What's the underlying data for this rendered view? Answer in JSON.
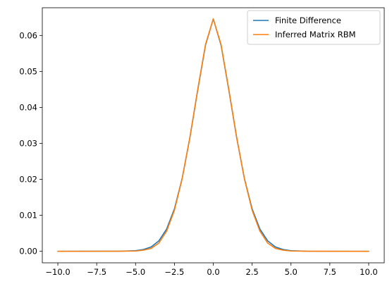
{
  "chart_data": {
    "type": "line",
    "title": "",
    "xlabel": "",
    "ylabel": "",
    "xlim": [
      -11.0,
      11.0
    ],
    "ylim": [
      -0.0032,
      0.0677
    ],
    "x_ticks": [
      -10.0,
      -7.5,
      -5.0,
      -2.5,
      0.0,
      2.5,
      5.0,
      7.5,
      10.0
    ],
    "x_tick_labels": [
      "−10.0",
      "−7.5",
      "−5.0",
      "−2.5",
      "0.0",
      "2.5",
      "5.0",
      "7.5",
      "10.0"
    ],
    "y_ticks": [
      0.0,
      0.01,
      0.02,
      0.03,
      0.04,
      0.05,
      0.06
    ],
    "y_tick_labels": [
      "0.00",
      "0.01",
      "0.02",
      "0.03",
      "0.04",
      "0.05",
      "0.06"
    ],
    "grid": false,
    "legend_position": "top-right",
    "series": [
      {
        "name": "Finite Difference",
        "color": "#1f77b4",
        "x": [
          -10,
          -6,
          -5,
          -4.5,
          -4,
          -3.5,
          -3,
          -2.5,
          -2,
          -1.5,
          -1,
          -0.5,
          0,
          0.5,
          1,
          1.5,
          2,
          2.5,
          3,
          3.5,
          4,
          4.5,
          5,
          6,
          10
        ],
        "y": [
          0.0,
          3e-05,
          0.00018,
          0.0005,
          0.0012,
          0.0029,
          0.0062,
          0.0118,
          0.0203,
          0.0317,
          0.0448,
          0.0573,
          0.0646,
          0.0573,
          0.0448,
          0.0317,
          0.0203,
          0.0118,
          0.0062,
          0.0029,
          0.0012,
          0.0005,
          0.00018,
          3e-05,
          0.0
        ]
      },
      {
        "name": "Inferred Matrix RBM",
        "color": "#ff7f0e",
        "x": [
          -10,
          -6,
          -5,
          -4.5,
          -4,
          -3.5,
          -3,
          -2.5,
          -2,
          -1.5,
          -1,
          -0.5,
          0,
          0.5,
          1,
          1.5,
          2,
          2.5,
          3,
          3.5,
          4,
          4.5,
          5,
          6,
          10
        ],
        "y": [
          0.0,
          1e-05,
          8e-05,
          0.0003,
          0.0008,
          0.0023,
          0.0056,
          0.0114,
          0.0202,
          0.0318,
          0.045,
          0.0575,
          0.0646,
          0.0575,
          0.045,
          0.0318,
          0.0202,
          0.0114,
          0.0056,
          0.0023,
          0.0008,
          0.0003,
          8e-05,
          1e-05,
          0.0
        ]
      }
    ]
  }
}
